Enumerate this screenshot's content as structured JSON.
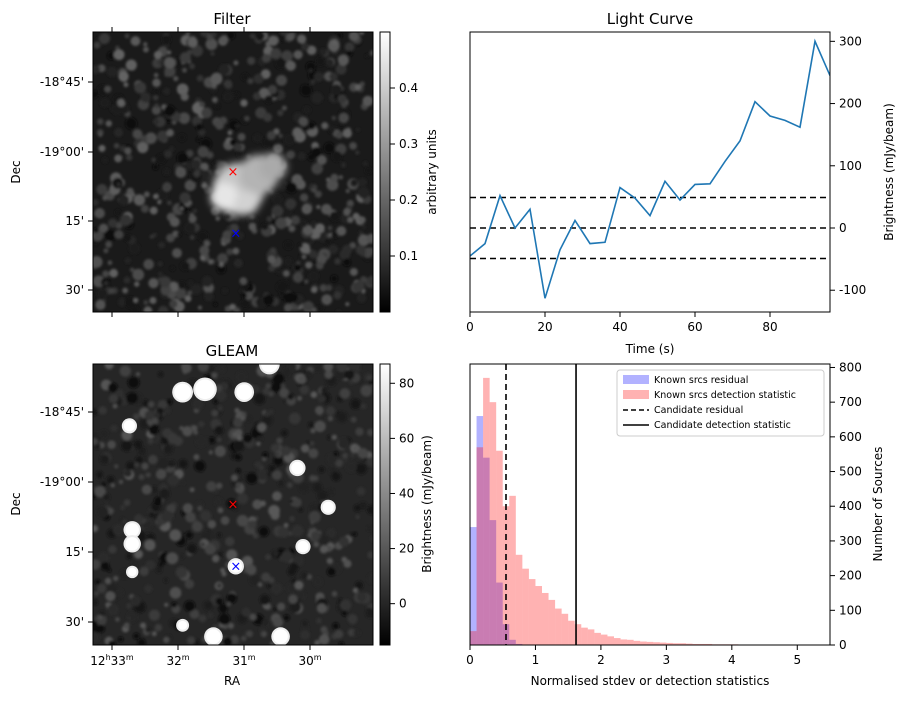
{
  "chart_data": [
    {
      "type": "heatmap",
      "title": "Filter",
      "xlabel": "",
      "ylabel": "Dec",
      "y_tick_labels": [
        "-18°45'",
        "-19°00'",
        "15'",
        "30'"
      ],
      "colorbar": {
        "label": "arbitrary units",
        "range": [
          0.0,
          0.5
        ],
        "ticks": [
          0.1,
          0.2,
          0.3,
          0.4
        ],
        "tick_labels": [
          "0.1",
          "0.2",
          "0.3",
          "0.4"
        ]
      },
      "markers": [
        {
          "symbol": "×",
          "color": "#ff0000",
          "x": 0.5,
          "y": 0.5
        },
        {
          "symbol": "×",
          "color": "#0000ff",
          "x": 0.51,
          "y": 0.72
        }
      ],
      "bright_blob": {
        "x": 0.52,
        "y": 0.56
      }
    },
    {
      "type": "line",
      "title": "Light Curve",
      "xlabel": "Time (s)",
      "ylabel": "Brightness (mJy/beam)",
      "xlim": [
        0,
        96
      ],
      "ylim": [
        -135,
        315
      ],
      "x_ticks": [
        0,
        20,
        40,
        60,
        80
      ],
      "y_ticks": [
        -100,
        0,
        100,
        200,
        300
      ],
      "color": "#1f77b4",
      "x": [
        0,
        4,
        8,
        12,
        16,
        20,
        24,
        28,
        32,
        36,
        40,
        44,
        48,
        52,
        56,
        60,
        64,
        68,
        72,
        76,
        80,
        84,
        88,
        92,
        96
      ],
      "values": [
        -45,
        -25,
        52,
        0,
        30,
        -113,
        -35,
        12,
        -25,
        -23,
        65,
        48,
        20,
        75,
        45,
        70,
        71,
        107,
        140,
        203,
        180,
        173,
        162,
        300,
        245
      ],
      "hlines": [
        49,
        0,
        -49
      ]
    },
    {
      "type": "heatmap",
      "title": "GLEAM",
      "xlabel": "RA",
      "ylabel": "Dec",
      "y_tick_labels": [
        "-18°45'",
        "-19°00'",
        "15'",
        "30'"
      ],
      "x_tick_labels": [
        {
          "main": "12",
          "sup1": "h",
          "mid": "33",
          "sup2": "m"
        },
        {
          "main": "32",
          "sup1": "m",
          "mid": "",
          "sup2": ""
        },
        {
          "main": "31",
          "sup1": "m",
          "mid": "",
          "sup2": ""
        },
        {
          "main": "30",
          "sup1": "m",
          "mid": "",
          "sup2": ""
        }
      ],
      "colorbar": {
        "label": "Brightness (mJy/beam)",
        "range": [
          -15,
          87
        ],
        "ticks": [
          0,
          20,
          40,
          60,
          80
        ],
        "tick_labels": [
          "0",
          "20",
          "40",
          "60",
          "80"
        ]
      },
      "markers": [
        {
          "symbol": "×",
          "color": "#ff0000",
          "x": 0.5,
          "y": 0.5
        },
        {
          "symbol": "×",
          "color": "#0000ff",
          "x": 0.51,
          "y": 0.72
        }
      ],
      "sources": [
        {
          "x": 0.32,
          "y": 0.1,
          "r": 0.03
        },
        {
          "x": 0.4,
          "y": 0.09,
          "r": 0.035
        },
        {
          "x": 0.54,
          "y": 0.1,
          "r": 0.028
        },
        {
          "x": 0.63,
          "y": 0.0,
          "r": 0.03
        },
        {
          "x": 0.13,
          "y": 0.22,
          "r": 0.02
        },
        {
          "x": 0.73,
          "y": 0.37,
          "r": 0.022
        },
        {
          "x": 0.84,
          "y": 0.51,
          "r": 0.02
        },
        {
          "x": 0.14,
          "y": 0.59,
          "r": 0.024
        },
        {
          "x": 0.14,
          "y": 0.64,
          "r": 0.024
        },
        {
          "x": 0.75,
          "y": 0.65,
          "r": 0.02
        },
        {
          "x": 0.51,
          "y": 0.72,
          "r": 0.022
        },
        {
          "x": 0.14,
          "y": 0.74,
          "r": 0.015
        },
        {
          "x": 0.43,
          "y": 0.97,
          "r": 0.026
        },
        {
          "x": 0.67,
          "y": 0.97,
          "r": 0.026
        },
        {
          "x": 0.32,
          "y": 0.93,
          "r": 0.016
        }
      ]
    },
    {
      "type": "bar",
      "title": "",
      "xlabel": "Normalised stdev or detection statistics",
      "ylabel": "Number of Sources",
      "xlim": [
        0,
        5.5
      ],
      "ylim": [
        0,
        810
      ],
      "x_ticks": [
        0,
        1,
        2,
        3,
        4,
        5
      ],
      "y_ticks": [
        0,
        100,
        200,
        300,
        400,
        500,
        600,
        700,
        800
      ],
      "bin_width": 0.1,
      "legend_position": "top-right",
      "series": [
        {
          "name": "Known srcs residual",
          "color": "#0000ff",
          "alpha": 0.3,
          "bin_start": 0.0,
          "values": [
            340,
            660,
            540,
            360,
            180,
            60,
            15,
            3
          ]
        },
        {
          "name": "Known srcs detection statistic",
          "color": "#ff0000",
          "alpha": 0.3,
          "bin_start": 0.0,
          "values": [
            40,
            570,
            770,
            700,
            560,
            400,
            430,
            260,
            220,
            190,
            170,
            150,
            130,
            105,
            90,
            70,
            60,
            50,
            45,
            35,
            30,
            25,
            20,
            16,
            15,
            12,
            10,
            9,
            8,
            7,
            6,
            5,
            5,
            4,
            3,
            3,
            3,
            2,
            2,
            2,
            2,
            1,
            1,
            1,
            1,
            1,
            1,
            1,
            1,
            1,
            1,
            0,
            0,
            0,
            0
          ]
        }
      ],
      "vlines": [
        {
          "name": "Candidate residual",
          "x": 0.55,
          "style": "dashed",
          "color": "#000000"
        },
        {
          "name": "Candidate detection statistic",
          "x": 1.62,
          "style": "solid",
          "color": "#000000"
        }
      ]
    }
  ]
}
